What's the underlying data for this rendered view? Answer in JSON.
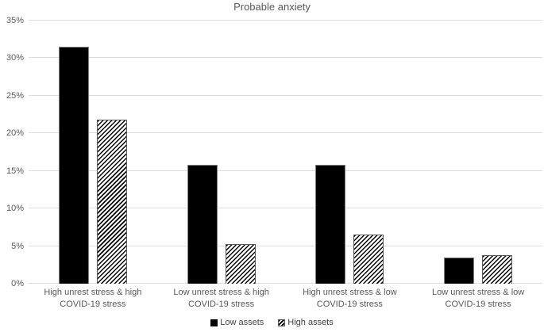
{
  "chart_data": {
    "type": "bar",
    "title": "Probable anxiety",
    "categories": [
      "High unrest stress & high COVID-19 stress",
      "Low unrest stress & high COVID-19 stress",
      "High unrest stress & low COVID-19 stress",
      "Low unrest stress & low COVID-19 stress"
    ],
    "series": [
      {
        "name": "Low assets",
        "pattern": "solid",
        "values": [
          31.5,
          15.8,
          15.8,
          3.5
        ]
      },
      {
        "name": "High assets",
        "pattern": "hatched",
        "values": [
          21.8,
          5.3,
          6.5,
          3.8
        ]
      }
    ],
    "ylim": [
      0,
      35
    ],
    "ytick_step": 5,
    "ytick_labels": [
      "0%",
      "5%",
      "10%",
      "15%",
      "20%",
      "25%",
      "30%",
      "35%"
    ],
    "xlabel": "",
    "ylabel": "",
    "grid": true,
    "legend_position": "bottom"
  },
  "colors": {
    "solid_bar": "#000000",
    "hatch_stroke": "#000000",
    "hatch_background": "#ffffff",
    "bar_border": "#595959",
    "gridline": "#dcdcdc",
    "axis_text": "#595959",
    "legend_text": "#404040",
    "background": "#ffffff"
  }
}
